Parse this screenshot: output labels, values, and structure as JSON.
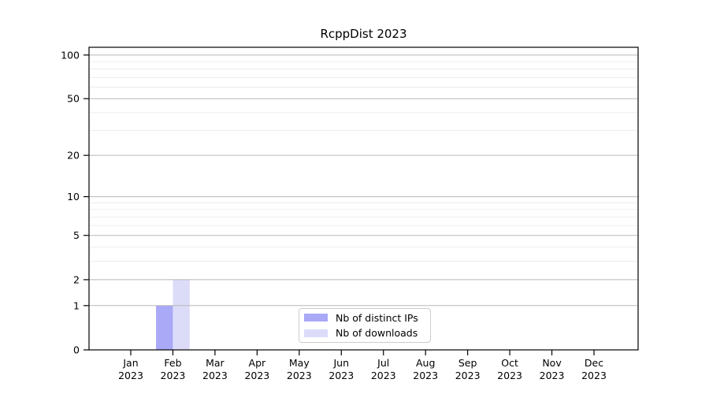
{
  "title": "RcppDist 2023",
  "legend": {
    "items": [
      {
        "label": "Nb of distinct IPs",
        "color": "#a9a9f8"
      },
      {
        "label": "Nb of downloads",
        "color": "#dcdcf9"
      }
    ]
  },
  "chart_data": {
    "type": "bar",
    "title": "RcppDist 2023",
    "xlabel": "",
    "ylabel": "",
    "categories": [
      "Jan 2023",
      "Feb 2023",
      "Mar 2023",
      "Apr 2023",
      "May 2023",
      "Jun 2023",
      "Jul 2023",
      "Aug 2023",
      "Sep 2023",
      "Oct 2023",
      "Nov 2023",
      "Dec 2023"
    ],
    "series": [
      {
        "name": "Nb of distinct IPs",
        "color": "#a9a9f8",
        "values": [
          0,
          1,
          0,
          0,
          0,
          0,
          0,
          0,
          0,
          0,
          0,
          0
        ]
      },
      {
        "name": "Nb of downloads",
        "color": "#dcdcf9",
        "values": [
          0,
          2,
          0,
          0,
          0,
          0,
          0,
          0,
          0,
          0,
          0,
          0
        ]
      }
    ],
    "yscale": "log1p",
    "ylim": [
      0,
      113
    ],
    "yticks": [
      0,
      1,
      2,
      5,
      10,
      20,
      50,
      100
    ],
    "minor_yticks": [
      3,
      4,
      6,
      7,
      8,
      9,
      30,
      40,
      60,
      70,
      80,
      90
    ],
    "grid": true,
    "grid_above_bars": true,
    "legend_position": "lower center"
  }
}
